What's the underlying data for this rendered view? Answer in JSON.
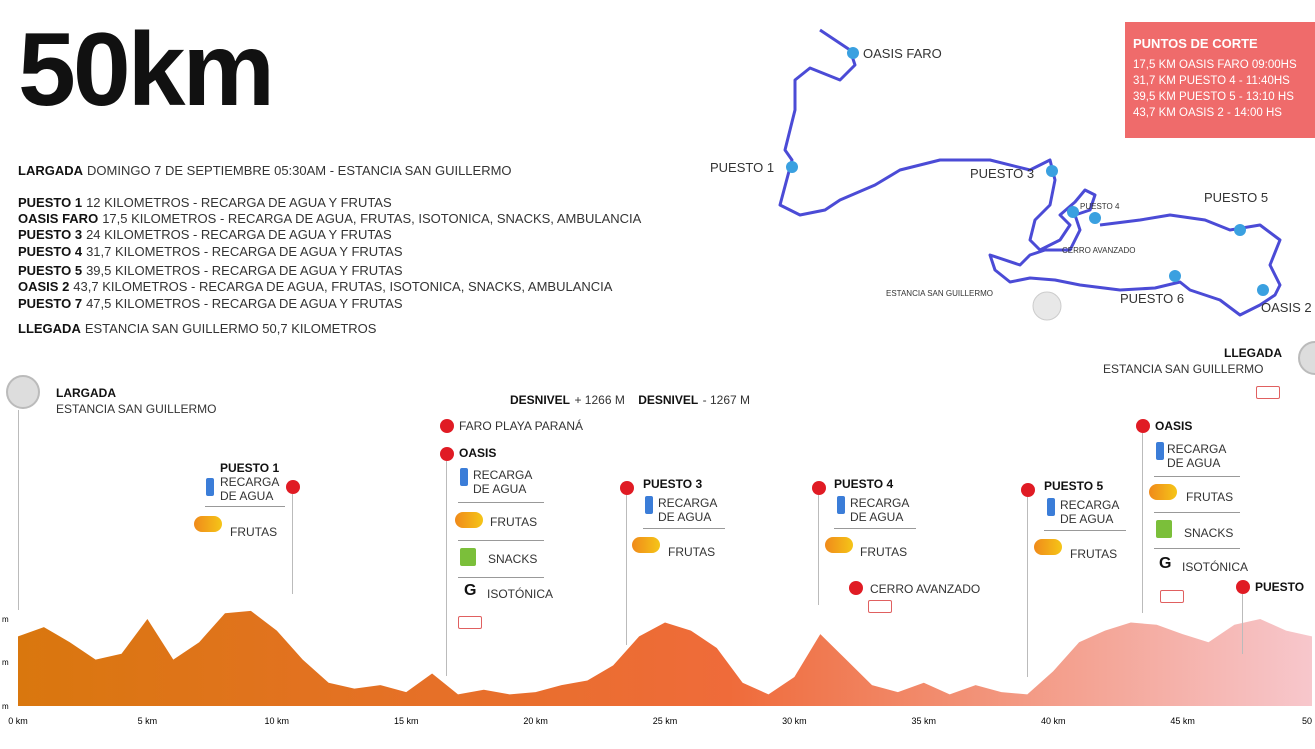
{
  "title": "50km",
  "info": [
    {
      "bold": "LARGADA",
      "text": "DOMINGO 7 DE SEPTIEMBRE 05:30AM - ESTANCIA SAN GUILLERMO"
    },
    {
      "bold": "PUESTO 1",
      "text": "12 KILOMETROS - RECARGA DE AGUA Y FRUTAS"
    },
    {
      "bold": "OASIS FARO",
      "text": "17,5 KILOMETROS - RECARGA DE AGUA, FRUTAS, ISOTONICA, SNACKS, AMBULANCIA"
    },
    {
      "bold": "PUESTO 3",
      "text": "24 KILOMETROS - RECARGA DE AGUA Y FRUTAS"
    },
    {
      "bold": "PUESTO 4",
      "text": "31,7 KILOMETROS - RECARGA DE AGUA Y FRUTAS"
    },
    {
      "bold": "PUESTO 5",
      "text": "39,5 KILOMETROS - RECARGA DE AGUA Y FRUTAS"
    },
    {
      "bold": "OASIS 2",
      "text": "43,7 KILOMETROS - RECARGA DE AGUA, FRUTAS, ISOTONICA, SNACKS, AMBULANCIA"
    },
    {
      "bold": "PUESTO 7",
      "text": "47,5 KILOMETROS - RECARGA DE AGUA Y FRUTAS"
    },
    {
      "bold": "LLEGADA",
      "text": "ESTANCIA SAN GUILLERMO 50,7 KILOMETROS"
    }
  ],
  "cutoff": {
    "title": "PUNTOS DE CORTE",
    "rows": [
      "17,5 KM OASIS FARO 09:00HS",
      "31,7 KM PUESTO 4 - 11:40HS",
      "39,5 KM PUESTO 5 - 13:10 HS",
      "43,7 KM OASIS 2 - 14:00 HS"
    ]
  },
  "map": {
    "labels": [
      "OASIS FARO",
      "PUESTO 1",
      "PUESTO 3",
      "PUESTO 4",
      "CERRO AVANZADO",
      "PUESTO 5",
      "ESTANCIA SAN GUILLERMO",
      "PUESTO 6",
      "OASIS 2"
    ],
    "colors": {
      "route": "#4b4bd6",
      "point": "#3aa0e0"
    }
  },
  "profile": {
    "desnivel_pos_label": "DESNIVEL",
    "desnivel_pos_value": "+ 1266 M",
    "desnivel_neg_label": "DESNIVEL",
    "desnivel_neg_value": "- 1267 M",
    "start_title": "LARGADA",
    "start_sub": "ESTANCIA SAN GUILLERMO",
    "finish_title": "LLEGADA",
    "finish_sub": "ESTANCIA SAN GUILLERMO",
    "faro": "FARO PLAYA PARANÁ",
    "cerro": "CERRO AVANZADO",
    "puesto1": "PUESTO 1",
    "puesto3": "PUESTO 3",
    "puesto4": "PUESTO 4",
    "puesto5": "PUESTO 5",
    "puesto7": "PUESTO",
    "oasis": "OASIS",
    "recarga1": "RECARGA",
    "recarga2": "DE AGUA",
    "frutas": "FRUTAS",
    "snacks": "SNACKS",
    "isotonica": "ISOTÓNICA",
    "x_ticks": [
      "0 km",
      "5 km",
      "10 km",
      "15 km",
      "20 km",
      "25 km",
      "30 km",
      "35 km",
      "40 km",
      "45 km",
      "50"
    ],
    "y_ticks": [
      "m",
      "m",
      "m"
    ],
    "colors": {
      "start": "#d9770e",
      "mid": "#ef6b3a",
      "end": "#f7c7cc"
    }
  },
  "chart_data": {
    "type": "area",
    "x": [
      0,
      1,
      2,
      3,
      4,
      5,
      6,
      7,
      8,
      9,
      10,
      11,
      12,
      13,
      14,
      15,
      16,
      17,
      18,
      19,
      20,
      21,
      22,
      23,
      24,
      25,
      26,
      27,
      28,
      29,
      30,
      31,
      32,
      33,
      34,
      35,
      36,
      37,
      38,
      39,
      40,
      41,
      42,
      43,
      44,
      45,
      46,
      47,
      48,
      49,
      50
    ],
    "values": [
      60,
      68,
      55,
      40,
      45,
      75,
      40,
      55,
      80,
      82,
      65,
      40,
      20,
      15,
      18,
      12,
      28,
      10,
      14,
      10,
      12,
      18,
      22,
      35,
      60,
      72,
      65,
      50,
      20,
      10,
      25,
      62,
      40,
      18,
      12,
      20,
      10,
      18,
      12,
      10,
      30,
      55,
      65,
      72,
      70,
      62,
      55,
      70,
      75,
      65,
      60
    ],
    "xlabel": "",
    "ylabel": "",
    "xlim": [
      0,
      50
    ],
    "ylim": [
      0,
      100
    ],
    "x_ticks": [
      "0 km",
      "5 km",
      "10 km",
      "15 km",
      "20 km",
      "25 km",
      "30 km",
      "35 km",
      "40 km",
      "45 km",
      "50"
    ]
  }
}
